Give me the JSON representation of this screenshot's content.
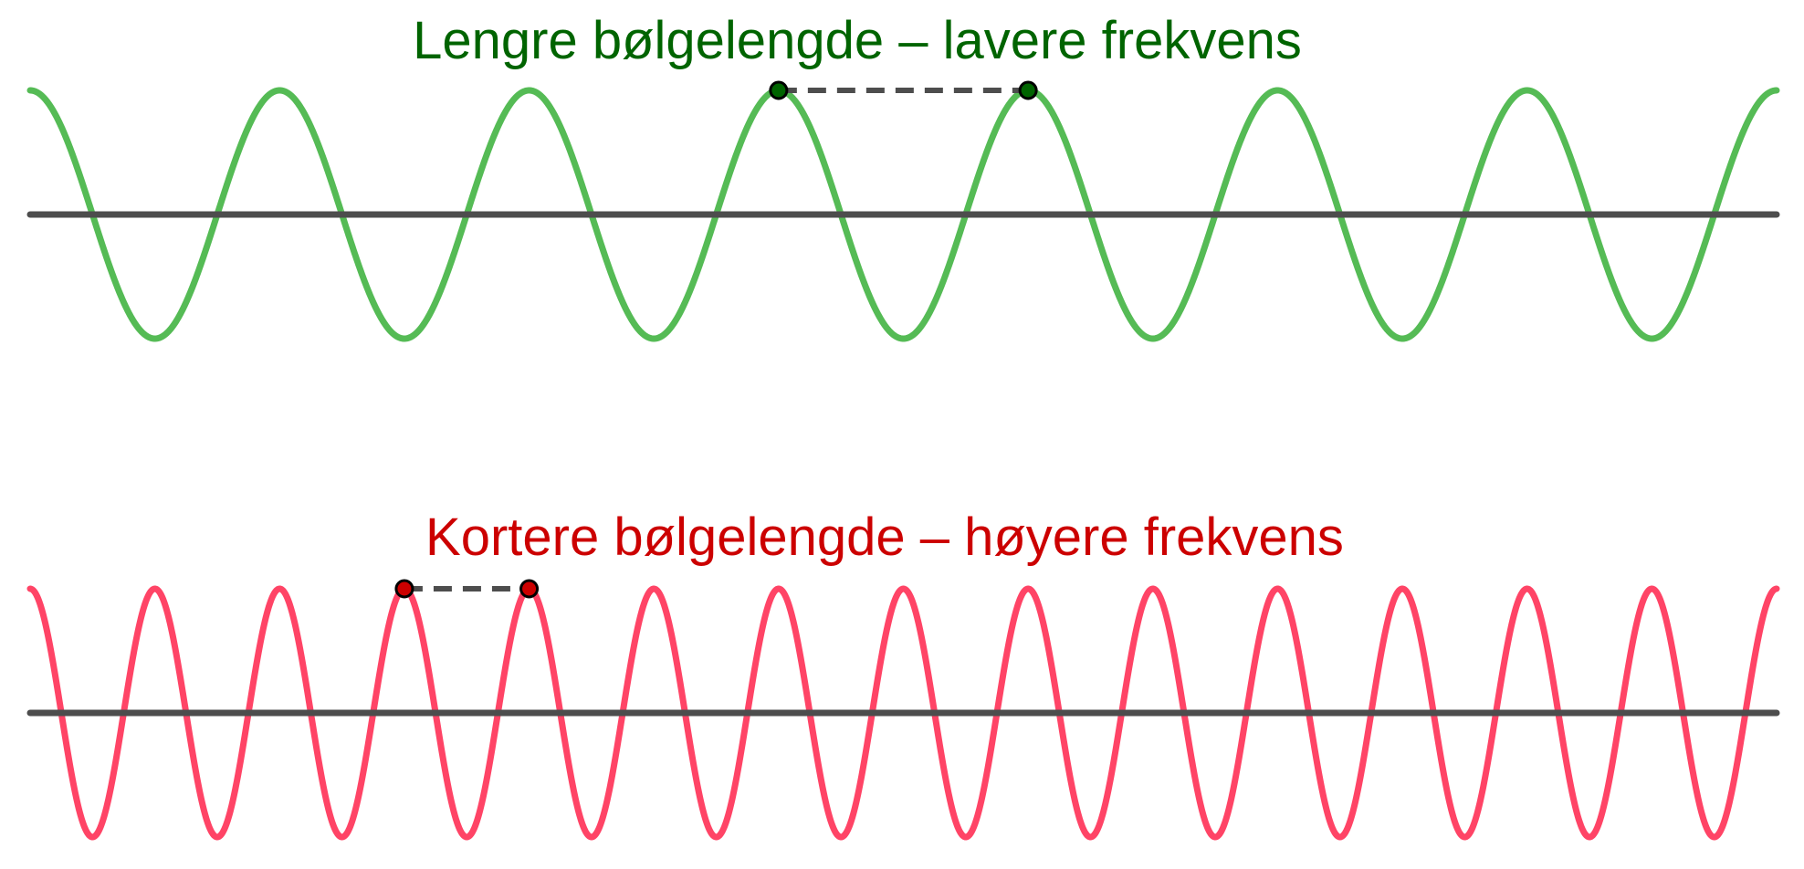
{
  "waves": [
    {
      "id": "long",
      "title": "Lengre bølgelengde – lavere frekvens",
      "title_color": "#006400",
      "wave_color": "#55BB55",
      "point_color": "#006400",
      "cycles_shown": 7
    },
    {
      "id": "short",
      "title": "Kortere bølgelengde – høyere frekvens",
      "title_color": "#CC0000",
      "wave_color": "#FF4466",
      "point_color": "#CC0000",
      "cycles_shown": 14
    }
  ],
  "axis_color": "#4D4D4D",
  "marker_line_color": "#4D4D4D"
}
